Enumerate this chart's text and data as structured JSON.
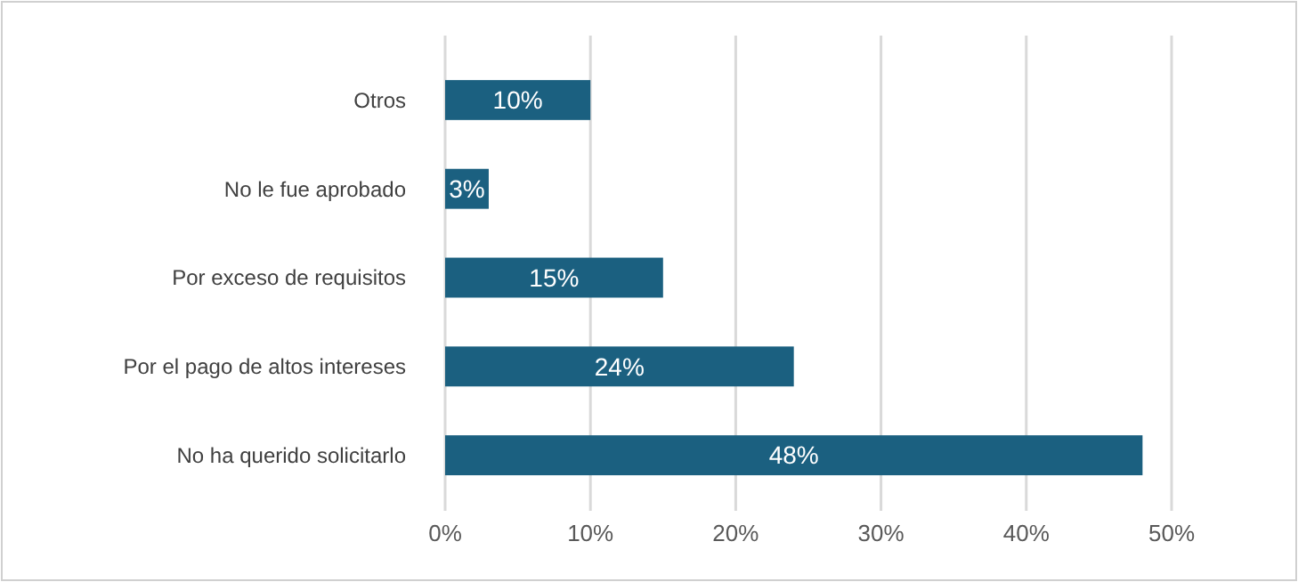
{
  "chart_data": {
    "type": "bar",
    "orientation": "horizontal",
    "categories": [
      "Otros",
      "No le fue aprobado",
      "Por exceso de requisitos",
      "Por el pago de altos intereses",
      "No ha querido solicitarlo"
    ],
    "values": [
      10,
      3,
      15,
      24,
      48
    ],
    "value_labels": [
      "10%",
      "3%",
      "15%",
      "24%",
      "48%"
    ],
    "color": "#1b6080",
    "xlim": [
      0,
      50
    ],
    "xticks": [
      {
        "value": 0,
        "label": "0%"
      },
      {
        "value": 10,
        "label": "10%"
      },
      {
        "value": 20,
        "label": "20%"
      },
      {
        "value": 30,
        "label": "30%"
      },
      {
        "value": 40,
        "label": "40%"
      },
      {
        "value": 50,
        "label": "50%"
      }
    ],
    "grid": "x"
  }
}
